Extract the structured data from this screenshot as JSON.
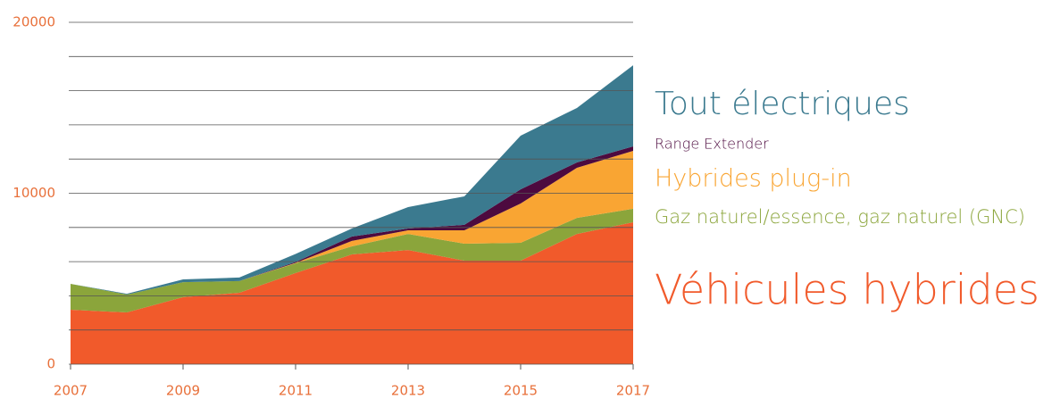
{
  "chart_data": {
    "type": "stacked_area",
    "x": [
      2007,
      2008,
      2009,
      2010,
      2011,
      2012,
      2013,
      2014,
      2015,
      2016,
      2017
    ],
    "series": [
      {
        "name": "Véhicules hybrides",
        "color": "#f15a2b",
        "values": [
          3185,
          3030,
          3920,
          4180,
          5330,
          6420,
          6680,
          6060,
          6060,
          7620,
          8300
        ]
      },
      {
        "name": "Gaz naturel/essence, gaz naturel (GNC)",
        "color": "#8ba53b",
        "values": [
          1515,
          1040,
          880,
          680,
          570,
          470,
          940,
          990,
          1040,
          940,
          790
        ]
      },
      {
        "name": "Hybrides plug-in",
        "color": "#f9a533",
        "values": [
          0,
          0,
          0,
          0,
          30,
          320,
          210,
          780,
          2300,
          2930,
          3390
        ]
      },
      {
        "name": "Range Extender",
        "color": "#4d0a3f",
        "values": [
          0,
          0,
          0,
          0,
          50,
          260,
          110,
          320,
          830,
          310,
          260
        ]
      },
      {
        "name": "Tout électriques",
        "color": "#3b7a8f",
        "values": [
          0,
          50,
          160,
          210,
          470,
          470,
          1250,
          1670,
          3140,
          3190,
          4750
        ]
      }
    ],
    "xlim": [
      2007,
      2017
    ],
    "xticks": [
      2007,
      2009,
      2011,
      2013,
      2015,
      2017
    ],
    "ylim": [
      0,
      20000
    ],
    "yticks": [
      0,
      10000,
      20000
    ],
    "minor_yticks": [
      2000,
      4000,
      6000,
      8000,
      12000,
      14000,
      16000,
      18000
    ],
    "grid": true
  }
}
